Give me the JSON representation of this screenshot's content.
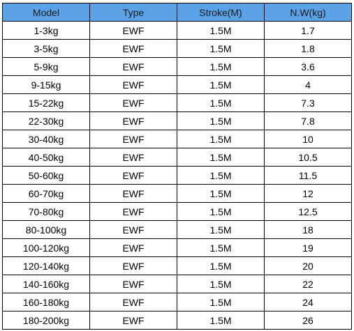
{
  "table": {
    "header": [
      "Model",
      "Type",
      "Stroke(M)",
      "N.W(kg)"
    ],
    "rows": [
      [
        "1-3kg",
        "EWF",
        "1.5M",
        "1.7"
      ],
      [
        "3-5kg",
        "EWF",
        "1.5M",
        "1.8"
      ],
      [
        "5-9kg",
        "EWF",
        "1.5M",
        "3.6"
      ],
      [
        "9-15kg",
        "EWF",
        "1.5M",
        "4"
      ],
      [
        "15-22kg",
        "EWF",
        "1.5M",
        "7.3"
      ],
      [
        "22-30kg",
        "EWF",
        "1.5M",
        "7.8"
      ],
      [
        "30-40kg",
        "EWF",
        "1.5M",
        "10"
      ],
      [
        "40-50kg",
        "EWF",
        "1.5M",
        "10.5"
      ],
      [
        "50-60kg",
        "EWF",
        "1.5M",
        "11.5"
      ],
      [
        "60-70kg",
        "EWF",
        "1.5M",
        "12"
      ],
      [
        "70-80kg",
        "EWF",
        "1.5M",
        "12.5"
      ],
      [
        "80-100kg",
        "EWF",
        "1.5M",
        "18"
      ],
      [
        "100-120kg",
        "EWF",
        "1.5M",
        "19"
      ],
      [
        "120-140kg",
        "EWF",
        "1.5M",
        "20"
      ],
      [
        "140-160kg",
        "EWF",
        "1.5M",
        "22"
      ],
      [
        "160-180kg",
        "EWF",
        "1.5M",
        "24"
      ],
      [
        "180-200kg",
        "EWF",
        "1.5M",
        "26"
      ]
    ]
  }
}
